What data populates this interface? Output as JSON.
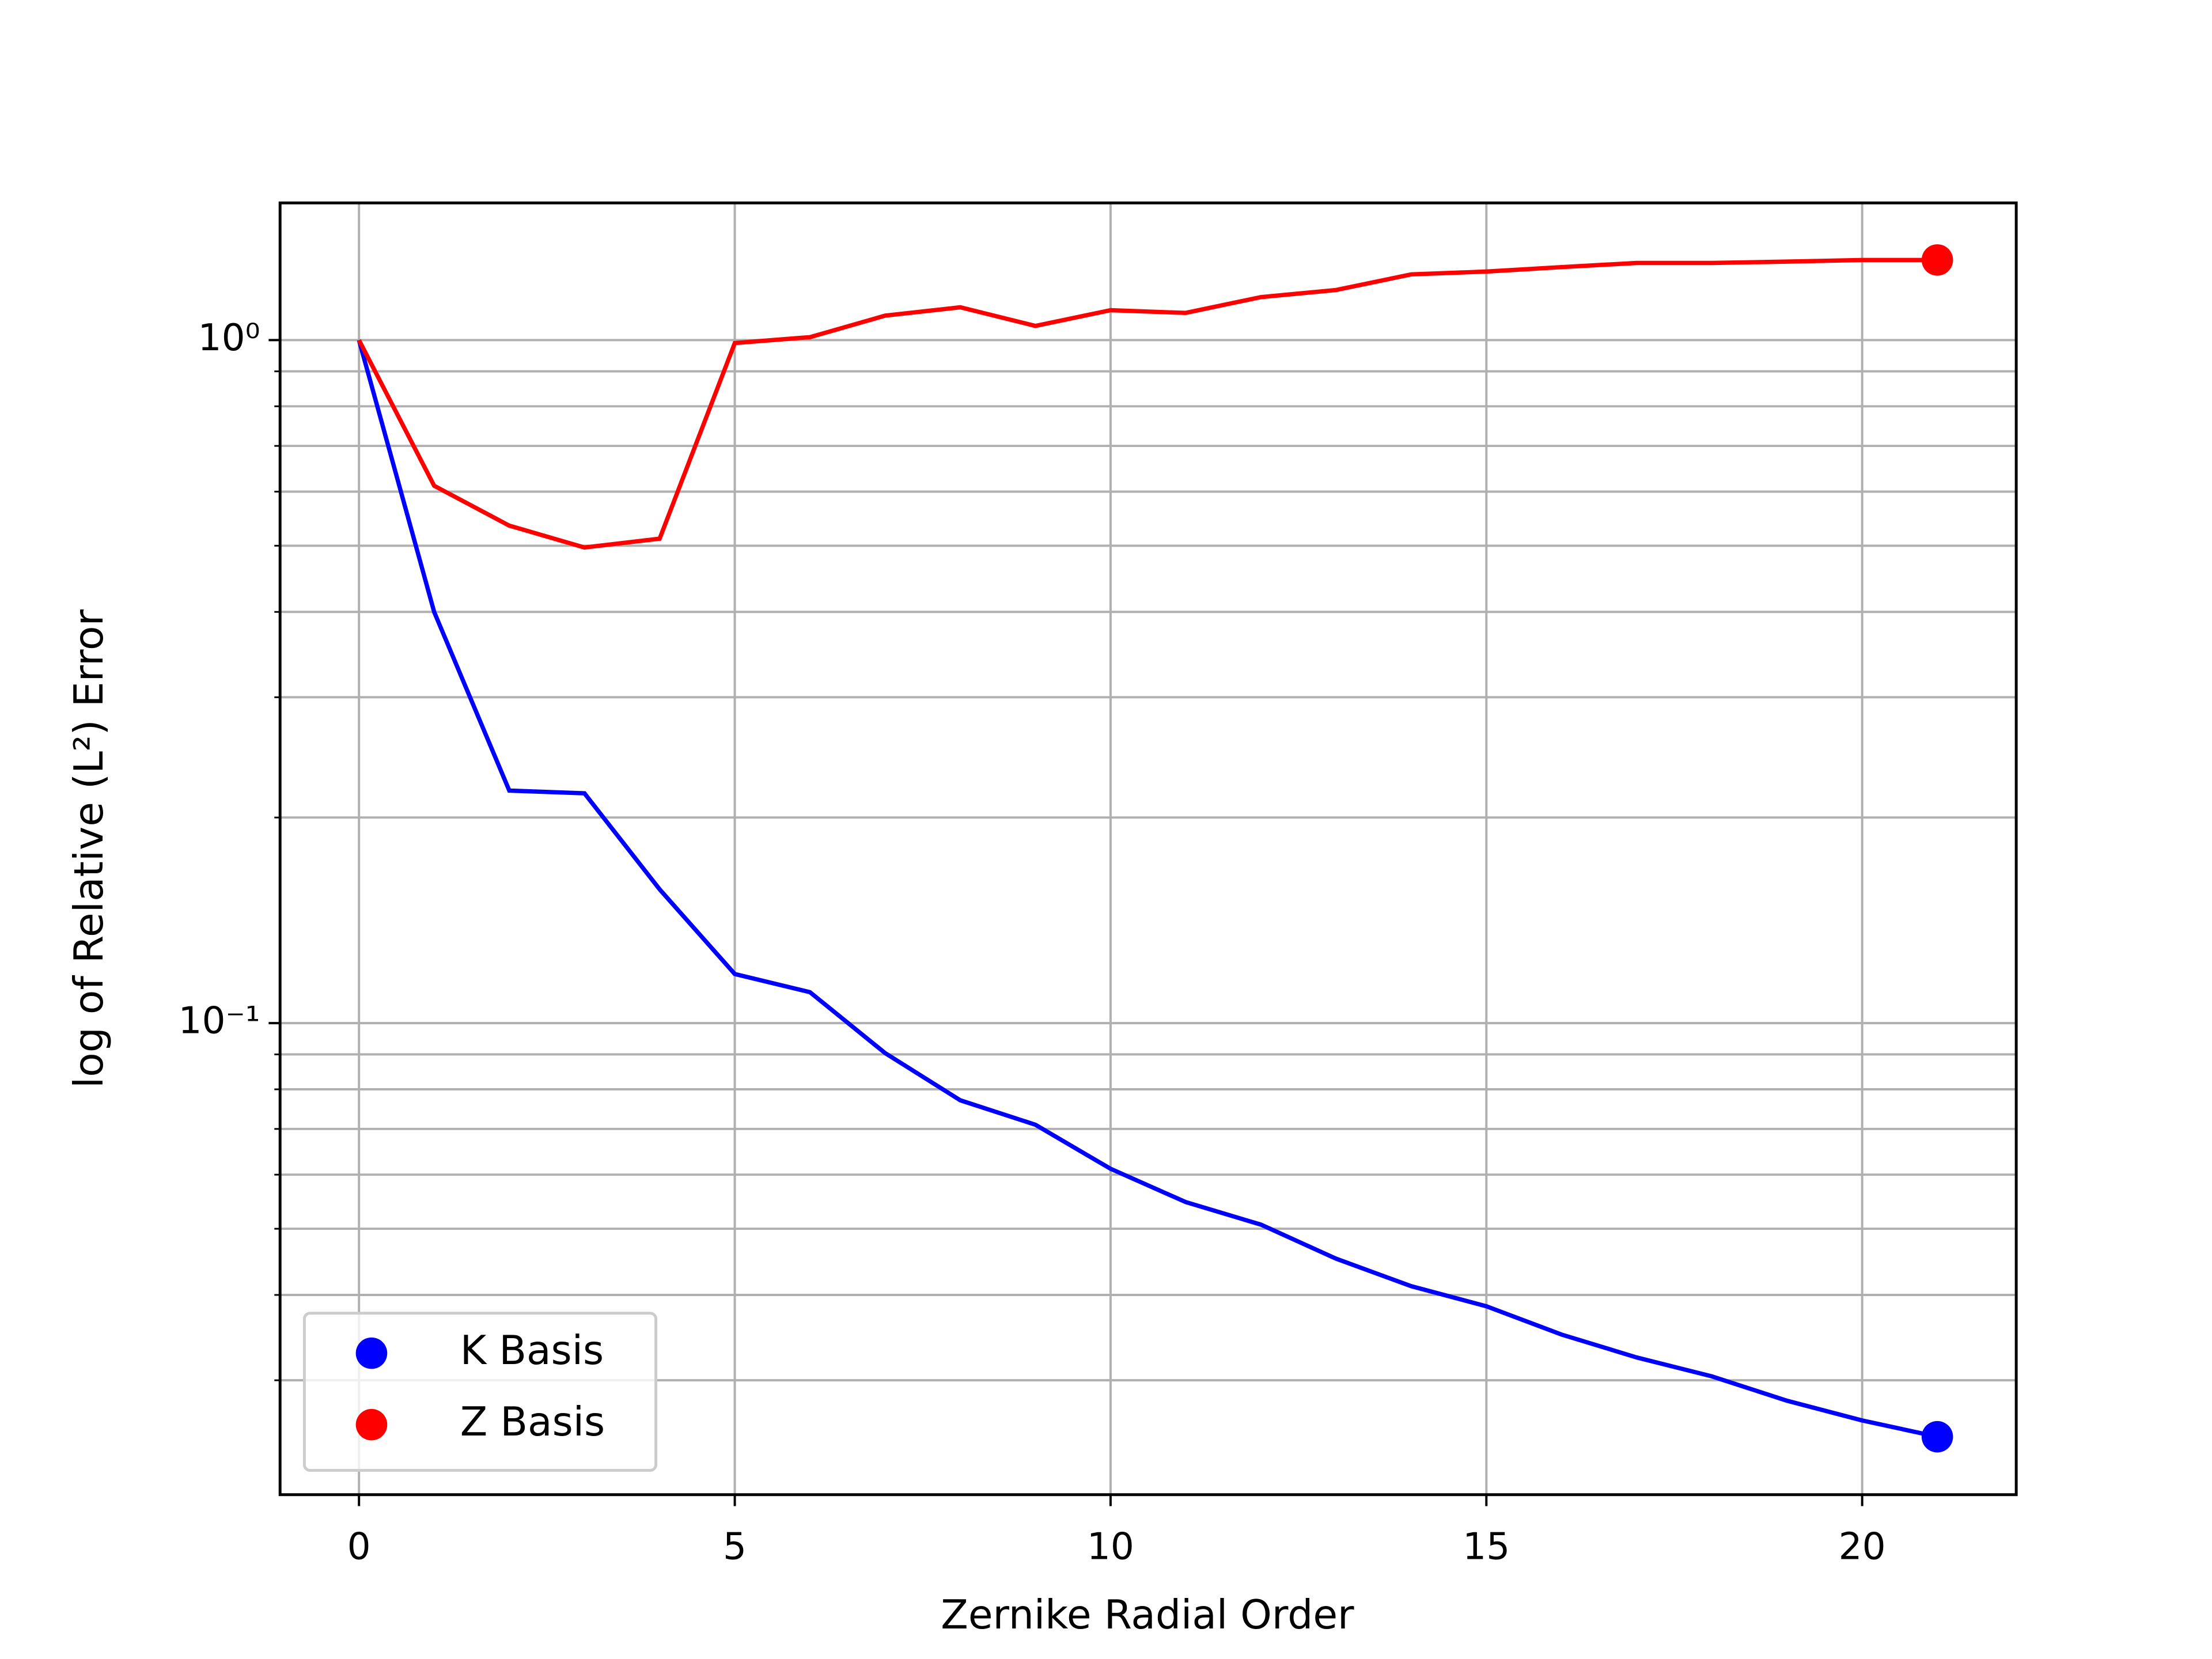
{
  "chart_data": {
    "type": "line",
    "xlabel": "Zernike Radial Order",
    "ylabel": "log of Relative (L²) Error",
    "x": [
      0,
      1,
      2,
      3,
      4,
      5,
      6,
      7,
      8,
      9,
      10,
      11,
      12,
      13,
      14,
      15,
      16,
      17,
      18,
      19,
      20,
      21
    ],
    "series": [
      {
        "name": "K Basis",
        "color": "#0000ff",
        "values": [
          1.0,
          0.4,
          0.219,
          0.217,
          0.157,
          0.118,
          0.111,
          0.0904,
          0.0771,
          0.071,
          0.0612,
          0.0547,
          0.0507,
          0.0452,
          0.0412,
          0.0385,
          0.035,
          0.0324,
          0.0304,
          0.028,
          0.0262,
          0.0248
        ]
      },
      {
        "name": "Z Basis",
        "color": "#ff0000",
        "values": [
          1.0,
          0.612,
          0.535,
          0.497,
          0.512,
          0.99,
          1.01,
          1.086,
          1.117,
          1.049,
          1.106,
          1.096,
          1.156,
          1.184,
          1.248,
          1.26,
          1.279,
          1.297,
          1.297,
          1.303,
          1.31,
          1.31
        ]
      }
    ],
    "end_marker": true,
    "xlim": [
      -1.05,
      22.05
    ],
    "xticks": [
      0,
      5,
      10,
      15,
      20
    ],
    "ylim": [
      0.0204,
      1.588
    ],
    "log_y": true,
    "yticks": [
      {
        "value": 0.1,
        "label": "10⁻¹"
      },
      {
        "value": 1,
        "label": "10⁰"
      }
    ],
    "yminor": [
      0.03,
      0.04,
      0.05,
      0.06,
      0.07,
      0.08,
      0.09,
      0.2,
      0.3,
      0.4,
      0.5,
      0.6,
      0.7,
      0.8,
      0.9
    ],
    "grid": true,
    "legend": "lower left"
  }
}
